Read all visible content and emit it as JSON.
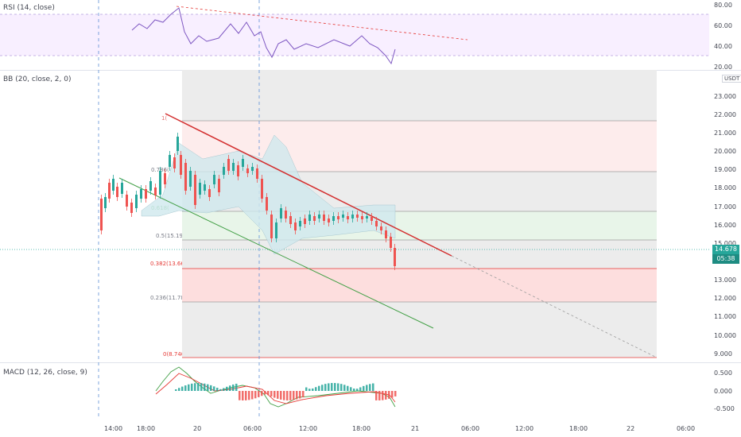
{
  "rsi": {
    "title": "RSI (14, close)",
    "axis": [
      "80.00",
      "60.00",
      "40.00",
      "20.00"
    ]
  },
  "bb": {
    "title": "BB (20, close, 2, 0)",
    "unit": "USDT",
    "axis": [
      "23.000",
      "22.000",
      "21.000",
      "20.000",
      "19.000",
      "18.000",
      "17.000",
      "16.000",
      "15.000",
      "13.000",
      "12.000",
      "11.000",
      "10.000",
      "9.000"
    ]
  },
  "price_badge": {
    "value": "14.678",
    "countdown": "05:38"
  },
  "fib": {
    "f1": "0.786(",
    "f0618": "0.618(",
    "f05": "0.5(15.190)",
    "f0382": "0.382(13.668)",
    "f0236": "0.236(11.785)",
    "f0": "0(8.740)",
    "f1top": "1("
  },
  "macd": {
    "title": "MACD (12, 26, close, 9)",
    "axis": [
      "0.500",
      "0.000",
      "-0.500"
    ]
  },
  "time_axis": [
    "14:00",
    "18:00",
    "20",
    "06:00",
    "12:00",
    "18:00",
    "21",
    "06:00",
    "12:00",
    "18:00",
    "22",
    "06:00"
  ],
  "colors": {
    "up": "#26a69a",
    "down": "#ef5350",
    "rsi_band": "#f3e5ff",
    "trend_red": "#d32f2f",
    "trend_green": "#43a047"
  }
}
